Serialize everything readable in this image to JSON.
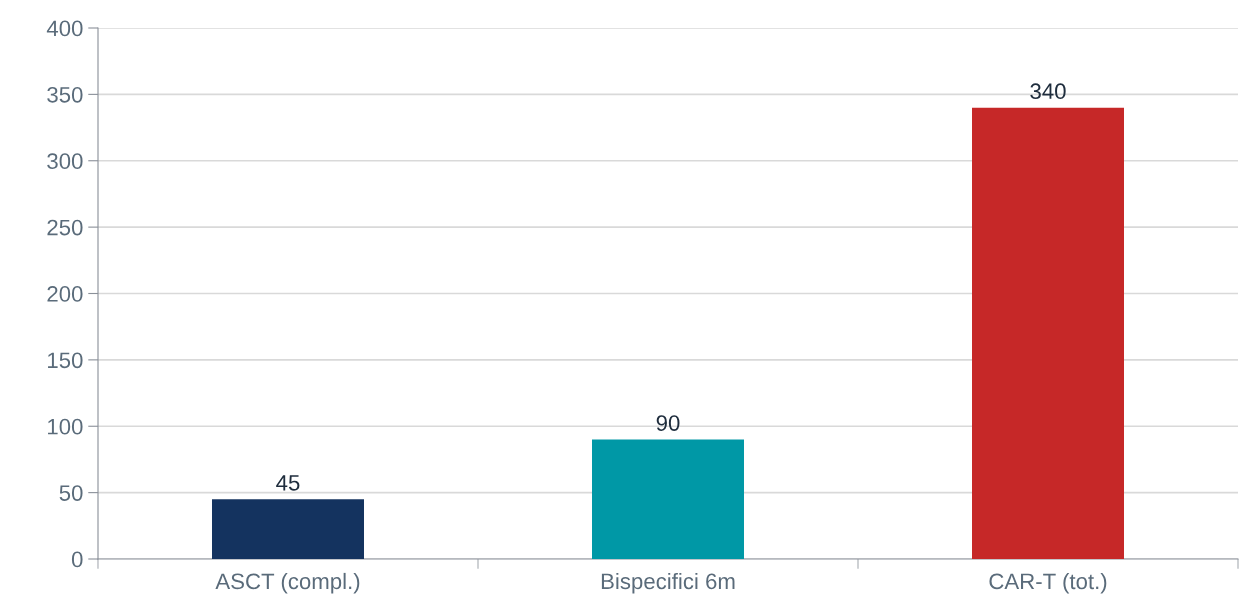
{
  "chart_data": {
    "type": "bar",
    "categories": [
      "ASCT (compl.)",
      "Bispecifici 6m",
      "CAR-T (tot.)"
    ],
    "values": [
      45,
      90,
      340
    ],
    "colors": [
      "#14335f",
      "#0098a6",
      "#c62828"
    ],
    "ylim": [
      0,
      400
    ],
    "yticks": [
      0,
      50,
      100,
      150,
      200,
      250,
      300,
      350,
      400
    ],
    "grid": "y",
    "data_labels": true,
    "legend": false
  }
}
